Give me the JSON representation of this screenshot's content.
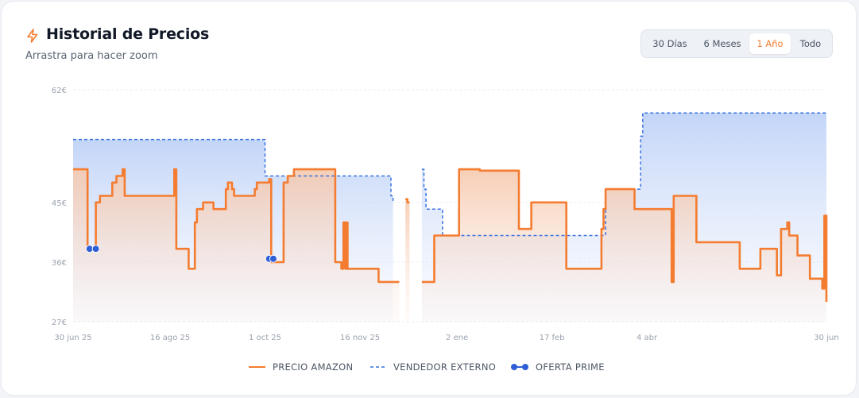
{
  "header": {
    "title": "Historial de Precios",
    "subtitle": "Arrastra para hacer zoom",
    "icon": "lightning-icon"
  },
  "range_selector": {
    "options": [
      "30 Días",
      "6 Meses",
      "1 Año",
      "Todo"
    ],
    "active": "1 Año"
  },
  "colors": {
    "amazon": "#f47c30",
    "external": "#3a72e0",
    "prime": "#2f5fd6",
    "accent": "#f47c30"
  },
  "chart_data": {
    "type": "line",
    "title": "Historial de Precios",
    "xlabel": "",
    "ylabel": "",
    "x_range": [
      "2025-06-30",
      "2026-06-30"
    ],
    "ylim": [
      27,
      62
    ],
    "y_ticks": [
      "62€",
      "45€",
      "36€",
      "27€"
    ],
    "y_tick_values": [
      62,
      45,
      36,
      27
    ],
    "x_ticks": [
      "30 jun 25",
      "16 ago 25",
      "1 oct 25",
      "16 nov 25",
      "2 ene",
      "17 feb",
      "4 abr",
      "30 jun"
    ],
    "x_tick_dates": [
      "2025-06-30",
      "2025-08-16",
      "2025-10-01",
      "2025-11-16",
      "2026-01-02",
      "2026-02-17",
      "2026-04-04",
      "2026-06-30"
    ],
    "grid": true,
    "legend": "bottom-center",
    "series": [
      {
        "name": "PRECIO AMAZON",
        "style": "solid",
        "segments": [
          {
            "x": [
              "2025-06-30",
              "2025-07-06",
              "2025-07-07",
              "2025-07-08",
              "2025-07-08",
              "2025-07-09",
              "2025-07-10",
              "2025-07-11",
              "2025-07-11",
              "2025-07-12",
              "2025-07-13",
              "2025-07-18",
              "2025-07-19",
              "2025-07-20",
              "2025-07-21",
              "2025-07-22",
              "2025-07-24",
              "2025-07-25",
              "2025-08-17",
              "2025-08-18",
              "2025-08-19",
              "2025-08-24",
              "2025-08-25",
              "2025-08-27",
              "2025-08-28",
              "2025-08-29",
              "2025-09-01",
              "2025-09-02",
              "2025-09-06",
              "2025-09-07",
              "2025-09-12",
              "2025-09-13",
              "2025-09-15",
              "2025-09-16",
              "2025-09-17",
              "2025-09-26",
              "2025-09-27",
              "2025-10-02",
              "2025-10-03",
              "2025-10-04",
              "2025-10-04",
              "2025-10-09",
              "2025-10-10",
              "2025-10-11",
              "2025-10-12",
              "2025-10-13",
              "2025-10-15",
              "2025-10-16",
              "2025-11-03",
              "2025-11-04",
              "2025-11-06",
              "2025-11-07",
              "2025-11-08",
              "2025-11-09",
              "2025-11-09",
              "2025-11-10",
              "2025-11-10",
              "2025-11-13",
              "2025-11-14",
              "2025-11-15",
              "2025-11-25",
              "2025-12-05"
            ],
            "y": [
              50,
              50,
              38,
              38,
              38,
              38,
              38,
              38,
              45,
              45,
              46,
              46,
              48,
              48,
              49,
              49,
              50,
              46,
              46,
              50,
              38,
              38,
              35,
              35,
              42,
              44,
              45,
              45,
              44,
              44,
              47,
              48,
              47,
              46,
              46,
              47,
              48,
              48,
              48.5,
              48,
              36,
              36,
              48,
              48,
              49,
              49,
              50,
              50,
              50,
              36,
              36,
              35,
              42,
              42,
              35,
              42,
              35,
              35,
              35,
              35,
              33,
              33
            ]
          },
          {
            "x": [
              "2025-12-08",
              "2025-12-09",
              "2025-12-10"
            ],
            "y": [
              45.5,
              45,
              45
            ]
          },
          {
            "x": [
              "2025-12-16",
              "2025-12-21",
              "2025-12-22",
              "2026-01-02",
              "2026-01-03",
              "2026-01-04",
              "2026-01-12",
              "2026-01-13",
              "2026-01-31",
              "2026-02-01",
              "2026-02-06",
              "2026-02-07",
              "2026-02-23",
              "2026-02-24",
              "2026-02-25",
              "2026-02-27",
              "2026-03-12",
              "2026-03-13",
              "2026-03-14",
              "2026-03-15",
              "2026-03-28",
              "2026-03-29",
              "2026-04-16",
              "2026-04-17",
              "2026-04-27",
              "2026-04-28",
              "2026-05-18",
              "2026-05-19",
              "2026-05-28",
              "2026-05-29",
              "2026-06-05",
              "2026-06-06",
              "2026-06-07",
              "2026-06-08",
              "2026-06-11",
              "2026-06-12",
              "2026-06-15",
              "2026-06-16",
              "2026-06-21",
              "2026-06-22",
              "2026-06-27",
              "2026-06-28",
              "2026-06-29",
              "2026-06-30"
            ],
            "y": [
              33,
              33,
              40,
              40,
              50,
              50,
              50,
              49.8,
              49.8,
              41,
              41,
              45,
              45,
              35,
              35,
              35,
              35,
              41,
              44,
              47,
              47,
              44,
              33,
              46,
              46,
              39,
              39,
              35,
              35,
              38,
              38,
              34,
              34,
              41,
              42,
              40,
              40,
              37,
              37,
              33.5,
              33.5,
              32,
              43,
              30
            ]
          }
        ]
      },
      {
        "name": "VENDEDOR EXTERNO",
        "style": "dashed",
        "segments": [
          {
            "x": [
              "2025-06-30",
              "2025-09-30",
              "2025-10-01",
              "2025-11-30",
              "2025-12-01",
              "2025-12-02"
            ],
            "y": [
              54.5,
              54.5,
              49,
              49,
              46,
              45
            ]
          },
          {
            "x": [
              "2025-12-16",
              "2025-12-17",
              "2025-12-18",
              "2025-12-19",
              "2025-12-26",
              "2026-01-01",
              "2026-02-22",
              "2026-03-15",
              "2026-03-31",
              "2026-04-01",
              "2026-04-02",
              "2026-06-30"
            ],
            "y": [
              50,
              47,
              44,
              44,
              40,
              40,
              40,
              47,
              47,
              55,
              58.5,
              58.5
            ]
          }
        ]
      },
      {
        "name": "OFERTA PRIME",
        "style": "points",
        "points": [
          {
            "x": "2025-07-08",
            "y": 38
          },
          {
            "x": "2025-07-11",
            "y": 38
          },
          {
            "x": "2025-10-03",
            "y": 36.5
          },
          {
            "x": "2025-10-05",
            "y": 36.5
          }
        ]
      }
    ]
  }
}
